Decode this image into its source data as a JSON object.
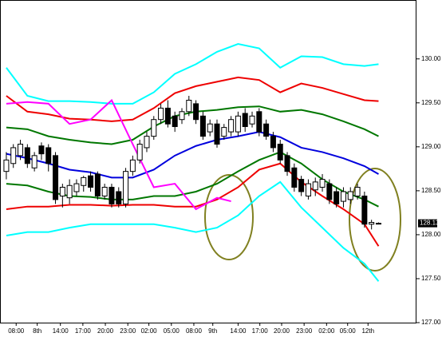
{
  "chart_data": {
    "type": "candlestick",
    "x": [
      0,
      1,
      2,
      3,
      4,
      5,
      6,
      7,
      8,
      9,
      10,
      11,
      12,
      13,
      14,
      15,
      16,
      17,
      18,
      19,
      20,
      21,
      22,
      23,
      24,
      25,
      26,
      27,
      28,
      29,
      30,
      31,
      32,
      33,
      34,
      35,
      36,
      37,
      38,
      39,
      40,
      41,
      42,
      43,
      44,
      45,
      46,
      47,
      48,
      49,
      50,
      51,
      52,
      53
    ],
    "open": [
      128.72,
      128.81,
      128.9,
      128.99,
      128.76,
      129.01,
      128.99,
      128.9,
      128.44,
      128.42,
      128.49,
      128.56,
      128.67,
      128.69,
      128.44,
      128.54,
      128.49,
      128.35,
      128.72,
      128.85,
      128.99,
      129.12,
      129.31,
      129.44,
      129.35,
      129.31,
      129.4,
      129.49,
      129.35,
      129.17,
      129.26,
      129.12,
      129.17,
      129.17,
      129.38,
      129.26,
      129.4,
      129.26,
      129.12,
      129.03,
      128.9,
      128.76,
      128.63,
      128.44,
      128.51,
      128.54,
      128.58,
      128.49,
      128.38,
      128.4,
      128.44,
      128.44,
      128.12,
      128.13
    ],
    "high": [
      128.94,
      129.03,
      129.08,
      129.03,
      128.94,
      129.05,
      129.03,
      128.94,
      128.58,
      128.63,
      128.63,
      128.67,
      128.72,
      128.72,
      128.58,
      128.58,
      128.54,
      128.76,
      128.9,
      129.08,
      129.17,
      129.35,
      129.49,
      129.53,
      129.4,
      129.44,
      129.58,
      129.53,
      129.4,
      129.31,
      129.31,
      129.26,
      129.35,
      129.4,
      129.44,
      129.4,
      129.44,
      129.31,
      129.17,
      129.08,
      128.94,
      128.81,
      128.67,
      128.63,
      128.65,
      128.69,
      128.63,
      128.54,
      128.54,
      128.54,
      128.58,
      128.49,
      128.17,
      128.14
    ],
    "low": [
      128.63,
      128.76,
      128.85,
      128.76,
      128.72,
      128.85,
      128.72,
      128.35,
      128.31,
      128.35,
      128.44,
      128.49,
      128.49,
      128.4,
      128.4,
      128.31,
      128.31,
      128.31,
      128.67,
      128.81,
      128.94,
      129.08,
      129.26,
      129.22,
      129.17,
      129.26,
      129.35,
      129.26,
      129.08,
      129.12,
      128.99,
      129.08,
      129.12,
      129.12,
      129.17,
      129.22,
      129.12,
      129.08,
      128.94,
      128.81,
      128.67,
      128.49,
      128.44,
      128.4,
      128.44,
      128.49,
      128.35,
      128.31,
      128.31,
      128.35,
      128.4,
      128.08,
      128.06,
      128.12
    ],
    "close": [
      128.85,
      128.99,
      129.03,
      128.81,
      128.9,
      128.92,
      128.81,
      128.4,
      128.54,
      128.56,
      128.58,
      128.65,
      128.54,
      128.44,
      128.54,
      128.35,
      128.35,
      128.72,
      128.85,
      129.03,
      129.12,
      129.31,
      129.44,
      129.26,
      129.23,
      129.4,
      129.53,
      129.31,
      129.12,
      129.26,
      129.03,
      129.22,
      129.31,
      129.35,
      129.23,
      129.35,
      129.17,
      129.12,
      128.99,
      128.85,
      128.72,
      128.54,
      128.49,
      128.58,
      128.6,
      128.63,
      128.4,
      128.35,
      128.49,
      128.49,
      128.54,
      128.12,
      128.14,
      128.13
    ],
    "lines": [
      {
        "color": "#00ffff",
        "x": [
          0,
          3,
          6,
          9,
          12,
          15,
          18,
          21,
          24,
          27,
          30,
          33,
          36,
          39,
          42,
          45,
          48,
          51,
          53
        ],
        "values": [
          129.9,
          129.58,
          129.52,
          129.52,
          129.51,
          129.49,
          129.49,
          129.62,
          129.83,
          129.94,
          130.08,
          130.17,
          130.12,
          129.9,
          130.03,
          130.02,
          129.94,
          129.92,
          129.94
        ]
      },
      {
        "color": "#ee0000",
        "x": [
          0,
          3,
          6,
          9,
          12,
          15,
          18,
          21,
          24,
          27,
          30,
          33,
          36,
          39,
          42,
          45,
          48,
          51,
          53
        ],
        "values": [
          129.58,
          129.4,
          129.37,
          129.32,
          129.31,
          129.29,
          129.31,
          129.44,
          129.61,
          129.69,
          129.74,
          129.79,
          129.76,
          129.62,
          129.72,
          129.67,
          129.6,
          129.53,
          129.52
        ]
      },
      {
        "color": "#007700",
        "x": [
          0,
          3,
          6,
          9,
          12,
          15,
          18,
          21,
          24,
          27,
          30,
          33,
          36,
          39,
          42,
          45,
          48,
          51,
          53
        ],
        "values": [
          129.22,
          129.2,
          129.12,
          129.08,
          129.05,
          129.03,
          129.08,
          129.23,
          129.35,
          129.4,
          129.42,
          129.45,
          129.46,
          129.4,
          129.42,
          129.37,
          129.29,
          129.2,
          129.12
        ]
      },
      {
        "color": "#0000dd",
        "x": [
          0,
          3,
          6,
          9,
          12,
          15,
          18,
          21,
          24,
          27,
          30,
          33,
          36,
          39,
          42,
          45,
          48,
          51,
          53
        ],
        "values": [
          128.92,
          128.87,
          128.81,
          128.74,
          128.71,
          128.65,
          128.65,
          128.74,
          128.9,
          129.01,
          129.08,
          129.12,
          129.17,
          129.11,
          128.99,
          128.94,
          128.87,
          128.78,
          128.69
        ]
      },
      {
        "color": "#007700",
        "x": [
          0,
          3,
          6,
          9,
          12,
          15,
          18,
          21,
          24,
          27,
          30,
          33,
          36,
          39,
          42,
          45,
          48,
          51,
          53
        ],
        "values": [
          128.58,
          128.56,
          128.49,
          128.44,
          128.43,
          128.4,
          128.4,
          128.44,
          128.44,
          128.49,
          128.58,
          128.72,
          128.85,
          128.94,
          128.81,
          128.63,
          128.49,
          128.4,
          128.32
        ]
      },
      {
        "color": "#ee0000",
        "x": [
          0,
          3,
          6,
          9,
          12,
          15,
          18,
          21,
          24,
          27,
          30,
          33,
          36,
          39,
          42,
          45,
          48,
          51,
          53
        ],
        "values": [
          128.29,
          128.32,
          128.32,
          128.34,
          128.34,
          128.33,
          128.34,
          128.34,
          128.32,
          128.32,
          128.4,
          128.54,
          128.74,
          128.81,
          128.6,
          128.44,
          128.29,
          128.12,
          127.87
        ]
      },
      {
        "color": "#00ffff",
        "x": [
          0,
          3,
          6,
          9,
          12,
          15,
          18,
          21,
          24,
          27,
          30,
          33,
          36,
          39,
          42,
          45,
          48,
          51,
          53
        ],
        "values": [
          127.99,
          128.03,
          128.03,
          128.08,
          128.12,
          128.12,
          128.12,
          128.12,
          128.08,
          128.03,
          128.08,
          128.22,
          128.44,
          128.6,
          128.31,
          128.08,
          127.85,
          127.67,
          127.47
        ]
      },
      {
        "color": "#ff00ff",
        "x": [
          0,
          3,
          6,
          9,
          12,
          15,
          18,
          21,
          24,
          27,
          30,
          32
        ],
        "values": [
          129.49,
          129.51,
          129.49,
          129.26,
          129.31,
          129.53,
          129.03,
          128.54,
          128.58,
          128.29,
          128.42,
          128.38
        ]
      }
    ],
    "ylim": [
      127.0,
      130.67
    ],
    "yticks": [
      {
        "value": 127,
        "label": "127.00"
      },
      {
        "value": 127.5,
        "label": "127.50"
      },
      {
        "value": 128,
        "label": "128.00"
      },
      {
        "value": 128.5,
        "label": "128.50"
      },
      {
        "value": 129,
        "label": "129.00"
      },
      {
        "value": 129.5,
        "label": "129.50"
      },
      {
        "value": 130,
        "label": "130.00"
      }
    ],
    "xlim": [
      -0.9,
      58.4
    ],
    "xticks": [
      {
        "value": 1.4,
        "label": "08:00"
      },
      {
        "value": 4.4,
        "label": "8th"
      },
      {
        "value": 7.7,
        "label": "14:00"
      },
      {
        "value": 10.9,
        "label": "17:00"
      },
      {
        "value": 14.1,
        "label": "20:00"
      },
      {
        "value": 17.3,
        "label": "23:00"
      },
      {
        "value": 20.3,
        "label": "02:00"
      },
      {
        "value": 23.5,
        "label": "05:00"
      },
      {
        "value": 26.7,
        "label": "08:00"
      },
      {
        "value": 29.4,
        "label": "9th"
      },
      {
        "value": 33,
        "label": "14:00"
      },
      {
        "value": 36.1,
        "label": "17:00"
      },
      {
        "value": 39.2,
        "label": "20:00"
      },
      {
        "value": 42.4,
        "label": "23:00"
      },
      {
        "value": 45.6,
        "label": "02:00"
      },
      {
        "value": 48.6,
        "label": "05:00"
      },
      {
        "value": 51.5,
        "label": "12th"
      }
    ],
    "current_price": 128.13
  }
}
